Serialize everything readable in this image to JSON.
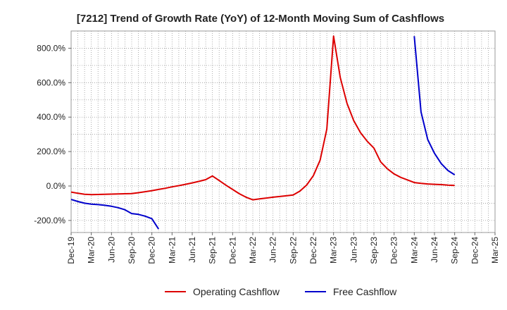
{
  "chart_data": {
    "type": "line",
    "title": "[7212]  Trend of Growth Rate (YoY) of 12-Month Moving Sum of Cashflows",
    "xlabel": "",
    "ylabel": "",
    "ylim": [
      -270,
      900
    ],
    "grid": true,
    "legend_position": "bottom",
    "y_ticks": [
      -200,
      0,
      200,
      400,
      600,
      800
    ],
    "y_tick_labels": [
      "-200.0%",
      "0.0%",
      "200.0%",
      "400.0%",
      "600.0%",
      "800.0%"
    ],
    "x_tick_labels": [
      "Dec-19",
      "Mar-20",
      "Jun-20",
      "Sep-20",
      "Dec-20",
      "Mar-21",
      "Jun-21",
      "Sep-21",
      "Dec-21",
      "Mar-22",
      "Jun-22",
      "Sep-22",
      "Dec-22",
      "Mar-23",
      "Jun-23",
      "Sep-23",
      "Dec-23",
      "Mar-24",
      "Jun-24",
      "Sep-24",
      "Dec-24",
      "Mar-25"
    ],
    "x_months": [
      "Dec-19",
      "Jan-20",
      "Feb-20",
      "Mar-20",
      "Apr-20",
      "May-20",
      "Jun-20",
      "Jul-20",
      "Aug-20",
      "Sep-20",
      "Oct-20",
      "Nov-20",
      "Dec-20",
      "Jan-21",
      "Feb-21",
      "Mar-21",
      "Apr-21",
      "May-21",
      "Jun-21",
      "Jul-21",
      "Aug-21",
      "Sep-21",
      "Oct-21",
      "Nov-21",
      "Dec-21",
      "Jan-22",
      "Feb-22",
      "Mar-22",
      "Apr-22",
      "May-22",
      "Jun-22",
      "Jul-22",
      "Aug-22",
      "Sep-22",
      "Oct-22",
      "Nov-22",
      "Dec-22",
      "Jan-23",
      "Feb-23",
      "Mar-23",
      "Apr-23",
      "May-23",
      "Jun-23",
      "Jul-23",
      "Aug-23",
      "Sep-23",
      "Oct-23",
      "Nov-23",
      "Dec-23",
      "Jan-24",
      "Feb-24",
      "Mar-24",
      "Apr-24",
      "May-24",
      "Jun-24",
      "Jul-24",
      "Aug-24",
      "Sep-24",
      "Oct-24",
      "Nov-24",
      "Dec-24",
      "Jan-25",
      "Feb-25",
      "Mar-25"
    ],
    "series": [
      {
        "name": "Operating Cashflow",
        "color": "#dd0000",
        "x": [
          "Dec-19",
          "Jan-20",
          "Feb-20",
          "Mar-20",
          "Apr-20",
          "May-20",
          "Jun-20",
          "Jul-20",
          "Aug-20",
          "Sep-20",
          "Oct-20",
          "Nov-20",
          "Dec-20",
          "Jan-21",
          "Feb-21",
          "Mar-21",
          "Apr-21",
          "May-21",
          "Jun-21",
          "Jul-21",
          "Aug-21",
          "Sep-21",
          "Oct-21",
          "Nov-21",
          "Dec-21",
          "Jan-22",
          "Feb-22",
          "Mar-22",
          "Apr-22",
          "May-22",
          "Jun-22",
          "Jul-22",
          "Aug-22",
          "Sep-22",
          "Oct-22",
          "Nov-22",
          "Dec-22",
          "Jan-23",
          "Feb-23",
          "Mar-23",
          "Apr-23",
          "May-23",
          "Jun-23",
          "Jul-23",
          "Aug-23",
          "Sep-23",
          "Oct-23",
          "Nov-23",
          "Dec-23",
          "Jan-24",
          "Feb-24",
          "Mar-24",
          "Apr-24",
          "May-24",
          "Jun-24",
          "Jul-24",
          "Aug-24",
          "Sep-24"
        ],
        "values": [
          -35,
          -42,
          -48,
          -50,
          -49,
          -48,
          -47,
          -46,
          -45,
          -44,
          -39,
          -33,
          -27,
          -20,
          -13,
          -5,
          2,
          10,
          18,
          27,
          37,
          58,
          32,
          5,
          -20,
          -45,
          -65,
          -80,
          -75,
          -70,
          -65,
          -61,
          -57,
          -52,
          -30,
          5,
          60,
          150,
          330,
          870,
          630,
          480,
          380,
          310,
          260,
          220,
          140,
          100,
          70,
          50,
          35,
          20,
          15,
          12,
          10,
          8,
          5,
          3
        ]
      },
      {
        "name": "Free Cashflow",
        "color": "#0000cc",
        "x": [
          "Dec-19",
          "Jan-20",
          "Feb-20",
          "Mar-20",
          "Apr-20",
          "May-20",
          "Jun-20",
          "Jul-20",
          "Aug-20",
          "Sep-20",
          "Oct-20",
          "Nov-20",
          "Dec-20",
          "Jan-21",
          "Mar-24",
          "Apr-24",
          "May-24",
          "Jun-24",
          "Jul-24",
          "Aug-24",
          "Sep-24"
        ],
        "values": [
          -78,
          -90,
          -100,
          -105,
          -108,
          -112,
          -118,
          -126,
          -138,
          -160,
          -165,
          -175,
          -190,
          -250,
          870,
          430,
          270,
          190,
          130,
          90,
          65
        ]
      }
    ]
  }
}
